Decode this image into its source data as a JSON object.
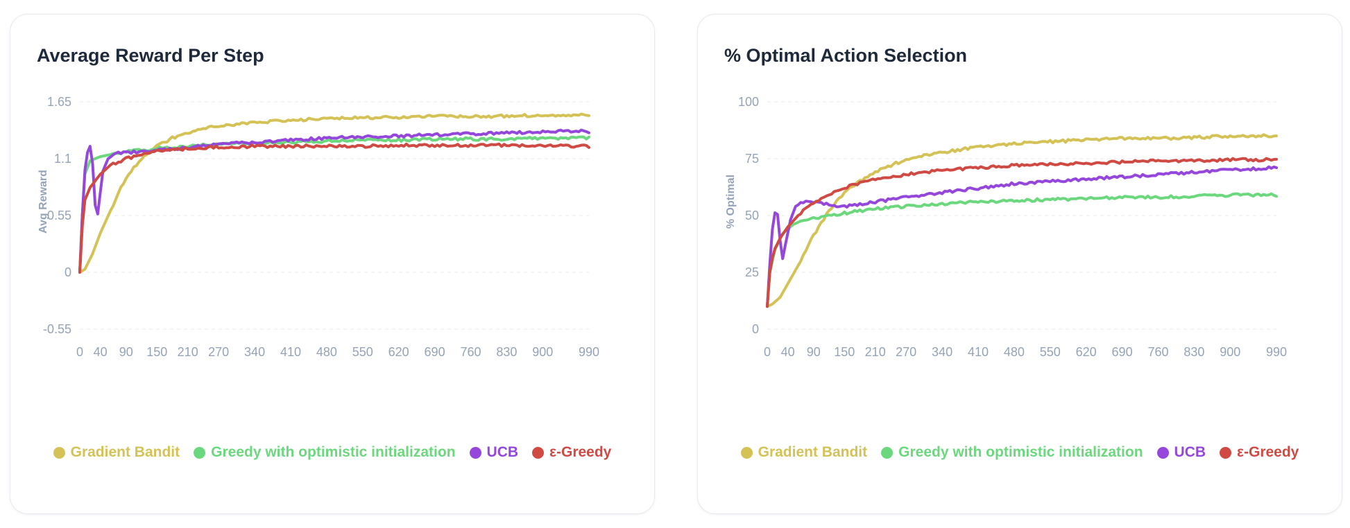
{
  "charts": [
    {
      "title": "Average Reward Per Step",
      "ylabel": "Avg Reward"
    },
    {
      "title": "% Optimal Action Selection",
      "ylabel": "% Optimal"
    }
  ],
  "chart_data": [
    {
      "type": "line",
      "title": "Average Reward Per Step",
      "xlabel": "",
      "ylabel": "Avg Reward",
      "xlim": [
        0,
        990
      ],
      "ylim": [
        -0.55,
        1.65
      ],
      "yticks": [
        -0.55,
        0,
        0.55,
        1.1,
        1.65
      ],
      "ytick_labels": [
        "-0.55",
        "0",
        "0.55",
        "1.1",
        "1.65"
      ],
      "xticks": [
        0,
        40,
        90,
        150,
        210,
        270,
        340,
        410,
        480,
        550,
        620,
        690,
        760,
        830,
        900,
        990
      ],
      "grid": true,
      "legend_position": "bottom",
      "series": [
        {
          "name": "Gradient Bandit",
          "color": "#d4c257",
          "points": [
            [
              0,
              0
            ],
            [
              10,
              0.03
            ],
            [
              25,
              0.18
            ],
            [
              40,
              0.38
            ],
            [
              60,
              0.6
            ],
            [
              80,
              0.82
            ],
            [
              100,
              0.98
            ],
            [
              120,
              1.1
            ],
            [
              150,
              1.22
            ],
            [
              180,
              1.3
            ],
            [
              210,
              1.35
            ],
            [
              250,
              1.4
            ],
            [
              300,
              1.43
            ],
            [
              350,
              1.45
            ],
            [
              400,
              1.47
            ],
            [
              450,
              1.48
            ],
            [
              500,
              1.49
            ],
            [
              600,
              1.5
            ],
            [
              700,
              1.51
            ],
            [
              800,
              1.51
            ],
            [
              900,
              1.52
            ],
            [
              990,
              1.52
            ]
          ]
        },
        {
          "name": "Greedy with optimistic initialization",
          "color": "#6cd87d",
          "points": [
            [
              0,
              0
            ],
            [
              5,
              0.55
            ],
            [
              10,
              0.95
            ],
            [
              20,
              1.08
            ],
            [
              40,
              1.12
            ],
            [
              60,
              1.14
            ],
            [
              90,
              1.17
            ],
            [
              120,
              1.18
            ],
            [
              150,
              1.2
            ],
            [
              210,
              1.22
            ],
            [
              270,
              1.24
            ],
            [
              340,
              1.25
            ],
            [
              410,
              1.26
            ],
            [
              480,
              1.27
            ],
            [
              550,
              1.28
            ],
            [
              620,
              1.28
            ],
            [
              690,
              1.29
            ],
            [
              760,
              1.29
            ],
            [
              830,
              1.29
            ],
            [
              900,
              1.3
            ],
            [
              990,
              1.3
            ]
          ]
        },
        {
          "name": "UCB",
          "color": "#9547db",
          "points": [
            [
              0,
              0
            ],
            [
              4,
              0.45
            ],
            [
              8,
              0.9
            ],
            [
              13,
              1.12
            ],
            [
              17,
              1.2
            ],
            [
              20,
              1.22
            ],
            [
              25,
              1.05
            ],
            [
              30,
              0.65
            ],
            [
              34,
              0.52
            ],
            [
              38,
              0.7
            ],
            [
              45,
              0.98
            ],
            [
              55,
              1.1
            ],
            [
              70,
              1.15
            ],
            [
              90,
              1.16
            ],
            [
              120,
              1.17
            ],
            [
              150,
              1.18
            ],
            [
              210,
              1.21
            ],
            [
              270,
              1.24
            ],
            [
              340,
              1.26
            ],
            [
              410,
              1.28
            ],
            [
              480,
              1.3
            ],
            [
              550,
              1.31
            ],
            [
              620,
              1.32
            ],
            [
              690,
              1.33
            ],
            [
              760,
              1.34
            ],
            [
              830,
              1.35
            ],
            [
              900,
              1.36
            ],
            [
              960,
              1.37
            ],
            [
              990,
              1.36
            ]
          ]
        },
        {
          "name": "ε-Greedy",
          "color": "#d04a44",
          "points": [
            [
              0,
              0
            ],
            [
              5,
              0.45
            ],
            [
              10,
              0.7
            ],
            [
              20,
              0.82
            ],
            [
              40,
              0.95
            ],
            [
              60,
              1.04
            ],
            [
              90,
              1.1
            ],
            [
              120,
              1.14
            ],
            [
              150,
              1.17
            ],
            [
              210,
              1.2
            ],
            [
              270,
              1.21
            ],
            [
              340,
              1.22
            ],
            [
              410,
              1.22
            ],
            [
              480,
              1.22
            ],
            [
              550,
              1.22
            ],
            [
              620,
              1.23
            ],
            [
              690,
              1.23
            ],
            [
              760,
              1.23
            ],
            [
              830,
              1.23
            ],
            [
              900,
              1.23
            ],
            [
              990,
              1.22
            ]
          ]
        }
      ]
    },
    {
      "type": "line",
      "title": "% Optimal Action Selection",
      "xlabel": "",
      "ylabel": "% Optimal",
      "xlim": [
        0,
        990
      ],
      "ylim": [
        0,
        100
      ],
      "yticks": [
        0,
        25,
        50,
        75,
        100
      ],
      "ytick_labels": [
        "0",
        "25",
        "50",
        "75",
        "100"
      ],
      "xticks": [
        0,
        40,
        90,
        150,
        210,
        270,
        340,
        410,
        480,
        550,
        620,
        690,
        760,
        830,
        900,
        990
      ],
      "grid": true,
      "legend_position": "bottom",
      "series": [
        {
          "name": "Gradient Bandit",
          "color": "#d4c257",
          "points": [
            [
              0,
              10
            ],
            [
              10,
              11
            ],
            [
              25,
              14
            ],
            [
              40,
              20
            ],
            [
              60,
              28
            ],
            [
              80,
              37
            ],
            [
              100,
              45
            ],
            [
              120,
              52
            ],
            [
              150,
              60
            ],
            [
              180,
              65
            ],
            [
              210,
              69
            ],
            [
              250,
              73
            ],
            [
              300,
              76
            ],
            [
              350,
              78
            ],
            [
              400,
              80
            ],
            [
              450,
              81
            ],
            [
              500,
              82
            ],
            [
              600,
              83
            ],
            [
              700,
              84
            ],
            [
              800,
              84
            ],
            [
              900,
              85
            ],
            [
              990,
              85
            ]
          ]
        },
        {
          "name": "Greedy with optimistic initialization",
          "color": "#6cd87d",
          "points": [
            [
              0,
              10
            ],
            [
              5,
              25
            ],
            [
              15,
              35
            ],
            [
              30,
              42
            ],
            [
              50,
              46
            ],
            [
              70,
              48
            ],
            [
              100,
              49
            ],
            [
              150,
              51
            ],
            [
              210,
              53
            ],
            [
              270,
              54
            ],
            [
              340,
              55
            ],
            [
              410,
              56
            ],
            [
              480,
              56.5
            ],
            [
              550,
              57
            ],
            [
              620,
              57.5
            ],
            [
              690,
              58
            ],
            [
              760,
              58
            ],
            [
              830,
              58.5
            ],
            [
              900,
              59
            ],
            [
              990,
              59
            ]
          ]
        },
        {
          "name": "UCB",
          "color": "#9547db",
          "points": [
            [
              0,
              10
            ],
            [
              4,
              25
            ],
            [
              8,
              40
            ],
            [
              13,
              50
            ],
            [
              18,
              53
            ],
            [
              22,
              48
            ],
            [
              26,
              36
            ],
            [
              30,
              31
            ],
            [
              36,
              38
            ],
            [
              45,
              48
            ],
            [
              55,
              54
            ],
            [
              70,
              56
            ],
            [
              90,
              56
            ],
            [
              110,
              55
            ],
            [
              150,
              54
            ],
            [
              210,
              56
            ],
            [
              270,
              58
            ],
            [
              340,
              60
            ],
            [
              410,
              62
            ],
            [
              480,
              64
            ],
            [
              550,
              65
            ],
            [
              620,
              66
            ],
            [
              690,
              67
            ],
            [
              760,
              68
            ],
            [
              830,
              69
            ],
            [
              900,
              70
            ],
            [
              990,
              71
            ]
          ]
        },
        {
          "name": "ε-Greedy",
          "color": "#d04a44",
          "points": [
            [
              0,
              10
            ],
            [
              5,
              25
            ],
            [
              12,
              34
            ],
            [
              25,
              40
            ],
            [
              40,
              45
            ],
            [
              60,
              50
            ],
            [
              80,
              54
            ],
            [
              100,
              57
            ],
            [
              130,
              60
            ],
            [
              160,
              63
            ],
            [
              210,
              66
            ],
            [
              270,
              68
            ],
            [
              340,
              70
            ],
            [
              410,
              71
            ],
            [
              480,
              72
            ],
            [
              550,
              72.5
            ],
            [
              620,
              73
            ],
            [
              690,
              73.5
            ],
            [
              760,
              74
            ],
            [
              830,
              74
            ],
            [
              900,
              74.5
            ],
            [
              990,
              74.5
            ]
          ]
        }
      ]
    }
  ]
}
